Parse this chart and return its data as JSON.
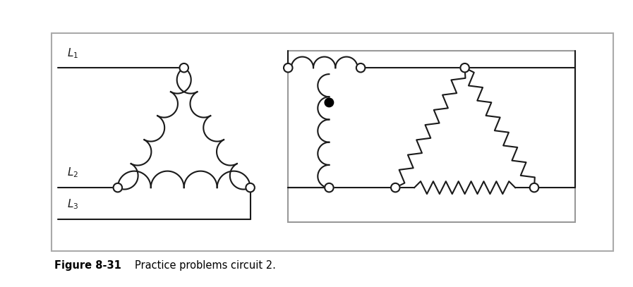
{
  "fig_width": 8.97,
  "fig_height": 4.07,
  "dpi": 100,
  "background_color": "#ffffff",
  "line_color": "#1a1a1a",
  "caption_bold": "Figure 8-31",
  "caption_normal": "  Practice problems circuit 2."
}
